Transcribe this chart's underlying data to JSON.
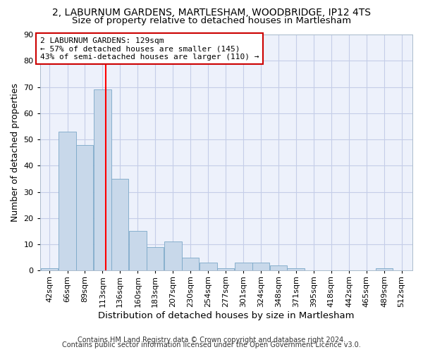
{
  "title": "2, LABURNUM GARDENS, MARTLESHAM, WOODBRIDGE, IP12 4TS",
  "subtitle": "Size of property relative to detached houses in Martlesham",
  "xlabel": "Distribution of detached houses by size in Martlesham",
  "ylabel": "Number of detached properties",
  "bins": [
    42,
    66,
    89,
    113,
    136,
    160,
    183,
    207,
    230,
    254,
    277,
    301,
    324,
    348,
    371,
    395,
    418,
    442,
    465,
    489,
    512
  ],
  "values": [
    1,
    53,
    48,
    69,
    35,
    15,
    9,
    11,
    5,
    3,
    1,
    3,
    3,
    2,
    1,
    0,
    0,
    0,
    0,
    1,
    0
  ],
  "bar_color": "#c8d8ea",
  "bar_edge_color": "#7ba8c8",
  "red_line_x": 129,
  "ylim": [
    0,
    90
  ],
  "yticks": [
    0,
    10,
    20,
    30,
    40,
    50,
    60,
    70,
    80,
    90
  ],
  "annotation_text": "2 LABURNUM GARDENS: 129sqm\n← 57% of detached houses are smaller (145)\n43% of semi-detached houses are larger (110) →",
  "annotation_box_color": "#ffffff",
  "annotation_box_edge": "#cc0000",
  "footer_line1": "Contains HM Land Registry data © Crown copyright and database right 2024.",
  "footer_line2": "Contains public sector information licensed under the Open Government Licence v3.0.",
  "background_color": "#edf1fb",
  "grid_color": "#c5cde8",
  "title_fontsize": 10,
  "subtitle_fontsize": 9.5,
  "tick_label_fontsize": 8,
  "ylabel_fontsize": 9,
  "xlabel_fontsize": 9.5,
  "footer_fontsize": 7,
  "bin_width": 23
}
